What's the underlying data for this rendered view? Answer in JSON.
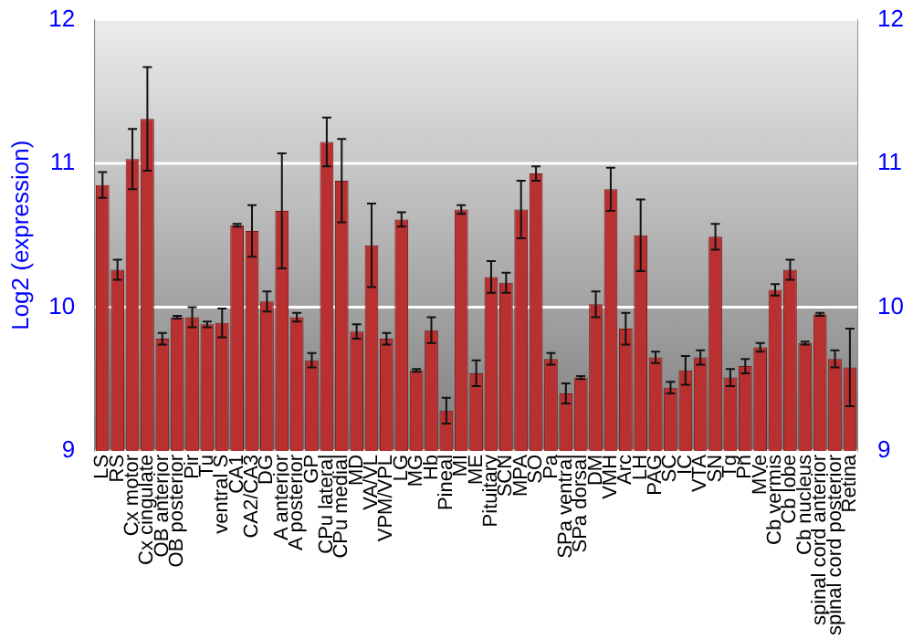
{
  "chart_data": {
    "type": "bar",
    "ylabel": "Log2 (expression)",
    "categories": [
      "LS",
      "RS",
      "Cx motor",
      "Cx cingulate",
      "OB anterior",
      "OB posterior",
      "Pir",
      "Tu",
      "ventral S",
      "CA1",
      "CA2/CA3",
      "DG",
      "A anterior",
      "A posterior",
      "GP",
      "CPu lateral",
      "CPu medial",
      "MD",
      "VA/VL",
      "VPM/VPL",
      "LG",
      "MG",
      "Hb",
      "Pineal",
      "MI",
      "ME",
      "Pituitary",
      "SCN",
      "MPA",
      "SO",
      "Pa",
      "SPa ventral",
      "SPa dorsal",
      "DM",
      "VMH",
      "Arc",
      "LH",
      "PAG",
      "SC",
      "IC",
      "VTA",
      "SN",
      "Tg",
      "Pn",
      "MVe",
      "Cb vermis",
      "Cb lobe",
      "Cb nucleus",
      "spinal cord anterior",
      "spinal cord posterior",
      "Retina"
    ],
    "values": [
      10.85,
      10.26,
      11.03,
      11.31,
      9.78,
      9.93,
      9.93,
      9.88,
      9.89,
      10.57,
      10.53,
      10.04,
      10.67,
      9.93,
      9.63,
      11.15,
      10.88,
      9.83,
      10.43,
      9.78,
      10.61,
      9.56,
      9.84,
      9.28,
      10.68,
      9.54,
      10.21,
      10.17,
      10.68,
      10.93,
      9.64,
      9.4,
      9.51,
      10.02,
      10.82,
      9.85,
      10.5,
      9.65,
      9.44,
      9.56,
      9.65,
      10.49,
      9.51,
      9.59,
      9.72,
      10.12,
      10.26,
      9.75,
      9.95,
      9.64,
      9.58
    ],
    "errors": [
      0.09,
      0.07,
      0.21,
      0.36,
      0.04,
      0.01,
      0.07,
      0.02,
      0.1,
      0.01,
      0.18,
      0.07,
      0.4,
      0.03,
      0.05,
      0.17,
      0.29,
      0.05,
      0.29,
      0.04,
      0.05,
      0.01,
      0.09,
      0.09,
      0.03,
      0.09,
      0.11,
      0.07,
      0.2,
      0.05,
      0.04,
      0.07,
      0.01,
      0.09,
      0.15,
      0.11,
      0.25,
      0.04,
      0.04,
      0.1,
      0.05,
      0.09,
      0.06,
      0.05,
      0.03,
      0.04,
      0.07,
      0.01,
      0.01,
      0.06,
      0.27
    ],
    "color": "#b83030",
    "ylim": [
      9,
      12
    ],
    "yticks": [
      9,
      10,
      11,
      12
    ],
    "y2lim": [
      9,
      12
    ],
    "y2ticks": [
      9,
      10,
      11,
      12
    ],
    "grid": "y",
    "legend": false
  }
}
